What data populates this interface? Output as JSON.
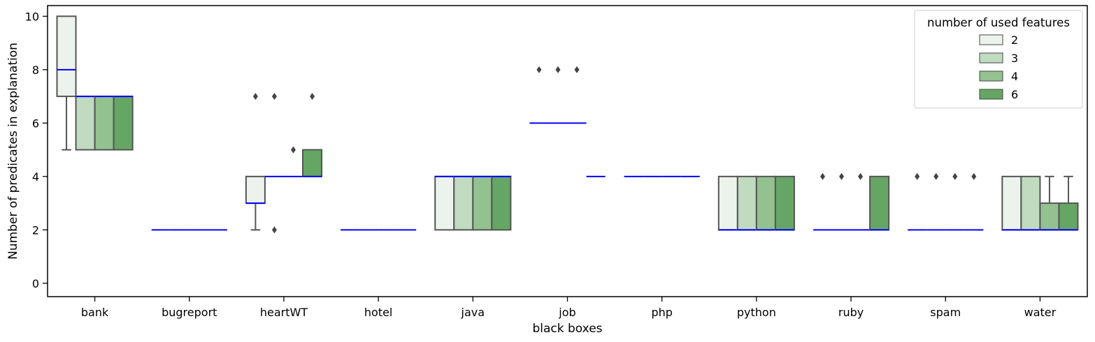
{
  "chart_data": {
    "type": "boxplot",
    "title": "",
    "xlabel": "black boxes",
    "ylabel": "Number of predicates in explanation",
    "ylim": [
      -0.5,
      10.4
    ],
    "yticks": [
      0,
      2,
      4,
      6,
      8,
      10
    ],
    "categories": [
      "bank",
      "bugreport",
      "heartWT",
      "hotel",
      "java",
      "job",
      "php",
      "python",
      "ruby",
      "spam",
      "water"
    ],
    "hue_levels": [
      "2",
      "3",
      "4",
      "6"
    ],
    "legend": {
      "title": "number of used features",
      "labels": [
        "2",
        "3",
        "4",
        "6"
      ],
      "placement": "top-right"
    },
    "colors": {
      "2": "#ebf3ec",
      "3": "#c0dbc0",
      "4": "#93c190",
      "6": "#66a664",
      "median": "#0000ff",
      "box_edge": "#555555"
    },
    "grid": false,
    "boxes": [
      {
        "category": "bank",
        "hue": "2",
        "whislo": 5,
        "q1": 7,
        "med": 8,
        "q3": 10,
        "whishi": 10,
        "fliers": []
      },
      {
        "category": "bank",
        "hue": "3",
        "whislo": 5,
        "q1": 5,
        "med": 7,
        "q3": 7,
        "whishi": 7,
        "fliers": []
      },
      {
        "category": "bank",
        "hue": "4",
        "whislo": 5,
        "q1": 5,
        "med": 7,
        "q3": 7,
        "whishi": 7,
        "fliers": []
      },
      {
        "category": "bank",
        "hue": "6",
        "whislo": 5,
        "q1": 5,
        "med": 7,
        "q3": 7,
        "whishi": 7,
        "fliers": []
      },
      {
        "category": "bugreport",
        "hue": "2",
        "whislo": 2,
        "q1": 2,
        "med": 2,
        "q3": 2,
        "whishi": 2,
        "fliers": []
      },
      {
        "category": "bugreport",
        "hue": "3",
        "whislo": 2,
        "q1": 2,
        "med": 2,
        "q3": 2,
        "whishi": 2,
        "fliers": []
      },
      {
        "category": "bugreport",
        "hue": "4",
        "whislo": 2,
        "q1": 2,
        "med": 2,
        "q3": 2,
        "whishi": 2,
        "fliers": []
      },
      {
        "category": "bugreport",
        "hue": "6",
        "whislo": 2,
        "q1": 2,
        "med": 2,
        "q3": 2,
        "whishi": 2,
        "fliers": []
      },
      {
        "category": "heartWT",
        "hue": "2",
        "whislo": 2,
        "q1": 3,
        "med": 3,
        "q3": 4,
        "whishi": 4,
        "fliers": [
          7
        ]
      },
      {
        "category": "heartWT",
        "hue": "3",
        "whislo": 4,
        "q1": 4,
        "med": 4,
        "q3": 4,
        "whishi": 4,
        "fliers": [
          7,
          2
        ]
      },
      {
        "category": "heartWT",
        "hue": "4",
        "whislo": 4,
        "q1": 4,
        "med": 4,
        "q3": 4,
        "whishi": 4,
        "fliers": [
          5
        ]
      },
      {
        "category": "heartWT",
        "hue": "6",
        "whislo": 4,
        "q1": 4,
        "med": 4,
        "q3": 5,
        "whishi": 5,
        "fliers": [
          7
        ]
      },
      {
        "category": "hotel",
        "hue": "2",
        "whislo": 2,
        "q1": 2,
        "med": 2,
        "q3": 2,
        "whishi": 2,
        "fliers": []
      },
      {
        "category": "hotel",
        "hue": "3",
        "whislo": 2,
        "q1": 2,
        "med": 2,
        "q3": 2,
        "whishi": 2,
        "fliers": []
      },
      {
        "category": "hotel",
        "hue": "4",
        "whislo": 2,
        "q1": 2,
        "med": 2,
        "q3": 2,
        "whishi": 2,
        "fliers": []
      },
      {
        "category": "hotel",
        "hue": "6",
        "whislo": 2,
        "q1": 2,
        "med": 2,
        "q3": 2,
        "whishi": 2,
        "fliers": []
      },
      {
        "category": "java",
        "hue": "2",
        "whislo": 2,
        "q1": 2,
        "med": 4,
        "q3": 4,
        "whishi": 4,
        "fliers": []
      },
      {
        "category": "java",
        "hue": "3",
        "whislo": 2,
        "q1": 2,
        "med": 4,
        "q3": 4,
        "whishi": 4,
        "fliers": []
      },
      {
        "category": "java",
        "hue": "4",
        "whislo": 2,
        "q1": 2,
        "med": 4,
        "q3": 4,
        "whishi": 4,
        "fliers": []
      },
      {
        "category": "java",
        "hue": "6",
        "whislo": 2,
        "q1": 2,
        "med": 4,
        "q3": 4,
        "whishi": 4,
        "fliers": []
      },
      {
        "category": "job",
        "hue": "2",
        "whislo": 6,
        "q1": 6,
        "med": 6,
        "q3": 6,
        "whishi": 6,
        "fliers": [
          8
        ]
      },
      {
        "category": "job",
        "hue": "3",
        "whislo": 6,
        "q1": 6,
        "med": 6,
        "q3": 6,
        "whishi": 6,
        "fliers": [
          8
        ]
      },
      {
        "category": "job",
        "hue": "4",
        "whislo": 6,
        "q1": 6,
        "med": 6,
        "q3": 6,
        "whishi": 6,
        "fliers": [
          8
        ]
      },
      {
        "category": "job",
        "hue": "6",
        "whislo": 4,
        "q1": 4,
        "med": 4,
        "q3": 4,
        "whishi": 4,
        "fliers": []
      },
      {
        "category": "php",
        "hue": "2",
        "whislo": 4,
        "q1": 4,
        "med": 4,
        "q3": 4,
        "whishi": 4,
        "fliers": []
      },
      {
        "category": "php",
        "hue": "3",
        "whislo": 4,
        "q1": 4,
        "med": 4,
        "q3": 4,
        "whishi": 4,
        "fliers": []
      },
      {
        "category": "php",
        "hue": "4",
        "whislo": 4,
        "q1": 4,
        "med": 4,
        "q3": 4,
        "whishi": 4,
        "fliers": []
      },
      {
        "category": "php",
        "hue": "6",
        "whislo": 4,
        "q1": 4,
        "med": 4,
        "q3": 4,
        "whishi": 4,
        "fliers": []
      },
      {
        "category": "python",
        "hue": "2",
        "whislo": 2,
        "q1": 2,
        "med": 2,
        "q3": 4,
        "whishi": 4,
        "fliers": []
      },
      {
        "category": "python",
        "hue": "3",
        "whislo": 2,
        "q1": 2,
        "med": 2,
        "q3": 4,
        "whishi": 4,
        "fliers": []
      },
      {
        "category": "python",
        "hue": "4",
        "whislo": 2,
        "q1": 2,
        "med": 2,
        "q3": 4,
        "whishi": 4,
        "fliers": []
      },
      {
        "category": "python",
        "hue": "6",
        "whislo": 2,
        "q1": 2,
        "med": 2,
        "q3": 4,
        "whishi": 4,
        "fliers": []
      },
      {
        "category": "ruby",
        "hue": "2",
        "whislo": 2,
        "q1": 2,
        "med": 2,
        "q3": 2,
        "whishi": 2,
        "fliers": [
          4
        ]
      },
      {
        "category": "ruby",
        "hue": "3",
        "whislo": 2,
        "q1": 2,
        "med": 2,
        "q3": 2,
        "whishi": 2,
        "fliers": [
          4
        ]
      },
      {
        "category": "ruby",
        "hue": "4",
        "whislo": 2,
        "q1": 2,
        "med": 2,
        "q3": 2,
        "whishi": 2,
        "fliers": [
          4
        ]
      },
      {
        "category": "ruby",
        "hue": "6",
        "whislo": 2,
        "q1": 2,
        "med": 2,
        "q3": 4,
        "whishi": 4,
        "fliers": []
      },
      {
        "category": "spam",
        "hue": "2",
        "whislo": 2,
        "q1": 2,
        "med": 2,
        "q3": 2,
        "whishi": 2,
        "fliers": [
          4
        ]
      },
      {
        "category": "spam",
        "hue": "3",
        "whislo": 2,
        "q1": 2,
        "med": 2,
        "q3": 2,
        "whishi": 2,
        "fliers": [
          4
        ]
      },
      {
        "category": "spam",
        "hue": "4",
        "whislo": 2,
        "q1": 2,
        "med": 2,
        "q3": 2,
        "whishi": 2,
        "fliers": [
          4
        ]
      },
      {
        "category": "spam",
        "hue": "6",
        "whislo": 2,
        "q1": 2,
        "med": 2,
        "q3": 2,
        "whishi": 2,
        "fliers": [
          4
        ]
      },
      {
        "category": "water",
        "hue": "2",
        "whislo": 2,
        "q1": 2,
        "med": 2,
        "q3": 4,
        "whishi": 4,
        "fliers": []
      },
      {
        "category": "water",
        "hue": "3",
        "whislo": 2,
        "q1": 2,
        "med": 2,
        "q3": 4,
        "whishi": 4,
        "fliers": []
      },
      {
        "category": "water",
        "hue": "4",
        "whislo": 2,
        "q1": 2,
        "med": 2,
        "q3": 3,
        "whishi": 4,
        "fliers": []
      },
      {
        "category": "water",
        "hue": "6",
        "whislo": 2,
        "q1": 2,
        "med": 2,
        "q3": 3,
        "whishi": 4,
        "fliers": []
      }
    ]
  }
}
